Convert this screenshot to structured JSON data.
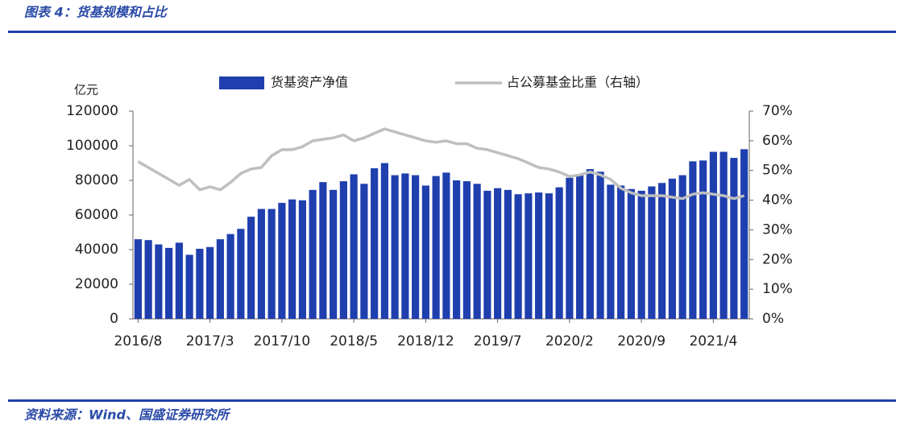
{
  "header": {
    "title": "图表 4：货基规模和占比"
  },
  "footer": {
    "source": "资料来源：Wind、国盛证券研究所"
  },
  "chart_data": {
    "type": "bar",
    "y_unit": "亿元",
    "categories": [
      "2016/8",
      null,
      null,
      null,
      null,
      null,
      null,
      "2017/3",
      null,
      null,
      null,
      null,
      null,
      null,
      "2017/10",
      null,
      null,
      null,
      null,
      null,
      null,
      "2018/5",
      null,
      null,
      null,
      null,
      null,
      null,
      "2018/12",
      null,
      null,
      null,
      null,
      null,
      null,
      "2019/7",
      null,
      null,
      null,
      null,
      null,
      null,
      "2020/2",
      null,
      null,
      null,
      null,
      null,
      null,
      "2020/9",
      null,
      null,
      null,
      null,
      null,
      null,
      "2021/4",
      null,
      null,
      null
    ],
    "series": [
      {
        "name": "货基资产净值",
        "type": "bar",
        "color": "#1f3fae",
        "values": [
          46000,
          45500,
          43000,
          41000,
          44000,
          37000,
          40500,
          41500,
          46000,
          49000,
          52000,
          59000,
          63500,
          63500,
          67000,
          69000,
          68500,
          74500,
          79000,
          74500,
          79500,
          83500,
          78000,
          87000,
          90000,
          83000,
          84000,
          83000,
          77000,
          82500,
          84500,
          80000,
          79500,
          78000,
          74000,
          75500,
          74500,
          72000,
          72500,
          73000,
          72500,
          76000,
          81500,
          83000,
          86500,
          85000,
          77500,
          77000,
          75000,
          74000,
          76500,
          78500,
          81000,
          83000,
          91000,
          91500,
          96500,
          96500,
          93000,
          98000
        ]
      },
      {
        "name": "占公募基金比重（右轴）",
        "type": "line",
        "axis": "y2",
        "color": "#bfbfbf",
        "values": [
          53,
          51,
          49,
          47,
          45,
          47,
          43.5,
          44.5,
          43.5,
          46,
          49,
          50.5,
          51,
          55,
          57,
          57,
          58,
          60,
          60.5,
          61,
          62,
          60,
          61,
          62.5,
          64,
          63,
          62,
          61,
          60,
          59.5,
          60,
          59,
          59,
          57.5,
          57,
          56,
          55,
          54,
          52.5,
          51,
          50.5,
          49.5,
          48,
          48.5,
          49.5,
          48.5,
          47,
          44,
          42.5,
          41.5,
          41.5,
          41.5,
          41,
          40.5,
          42,
          42.5,
          42,
          41.5,
          40.5,
          41.5
        ]
      }
    ],
    "ylim": [
      0,
      120000
    ],
    "yticks": [
      0,
      20000,
      40000,
      60000,
      80000,
      100000,
      120000
    ],
    "y2lim": [
      0,
      70
    ],
    "y2ticks": [
      {
        "value": 0,
        "label": "0%"
      },
      {
        "value": 10,
        "label": "10%"
      },
      {
        "value": 20,
        "label": "20%"
      },
      {
        "value": 30,
        "label": "30%"
      },
      {
        "value": 40,
        "label": "40%"
      },
      {
        "value": 50,
        "label": "50%"
      },
      {
        "value": 60,
        "label": "60%"
      },
      {
        "value": 70,
        "label": "70%"
      }
    ],
    "grid": false
  }
}
